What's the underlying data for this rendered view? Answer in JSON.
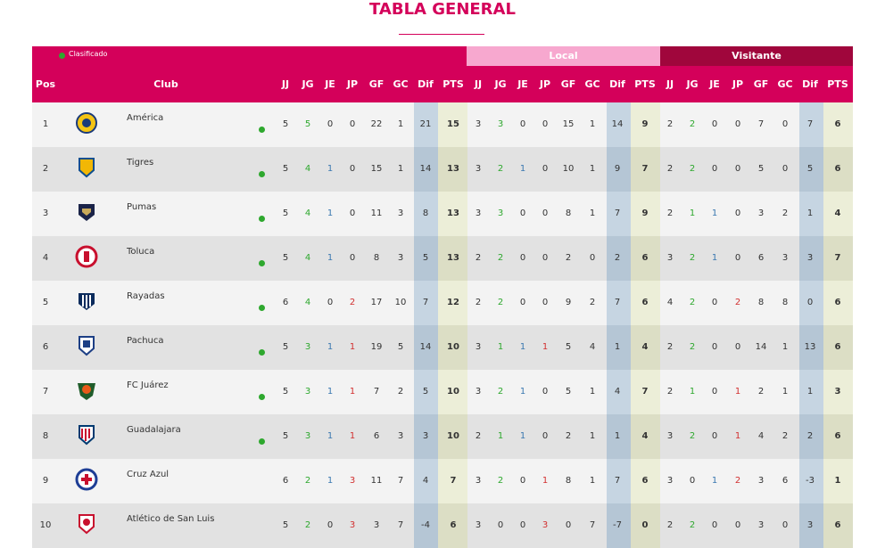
{
  "title": "TABLA GENERAL",
  "legend": {
    "label": "Clasificado",
    "color": "#2ea82e"
  },
  "segments": {
    "local": "Local",
    "visitante": "Visitante"
  },
  "headers": {
    "pos": "Pos",
    "club": "Club",
    "overall": [
      "JJ",
      "JG",
      "JE",
      "JP",
      "GF",
      "GC",
      "Dif",
      "PTS"
    ],
    "local": [
      "JJ",
      "JG",
      "JE",
      "JP",
      "GF",
      "GC",
      "Dif",
      "PTS"
    ],
    "visitante": [
      "JJ",
      "JG",
      "JE",
      "JP",
      "GF",
      "GC",
      "Dif",
      "PTS"
    ]
  },
  "colors": {
    "brand": "#d4005a",
    "local_header": "#f7a8cf",
    "visitante_header": "#a0063c",
    "dif_column": "#c0d0de",
    "pts_column": "#e8ebd2",
    "win": "#2ea82e",
    "draw": "#3a78b0",
    "loss": "#d23030"
  },
  "rows": [
    {
      "pos": "1",
      "club": "América",
      "logo": "america-logo",
      "classified": true,
      "overall": [
        "5",
        "5",
        "0",
        "0",
        "22",
        "1",
        "21",
        "15"
      ],
      "local": [
        "3",
        "3",
        "0",
        "0",
        "15",
        "1",
        "14",
        "9"
      ],
      "visitante": [
        "2",
        "2",
        "0",
        "0",
        "7",
        "0",
        "7",
        "6"
      ]
    },
    {
      "pos": "2",
      "club": "Tigres",
      "logo": "tigres-logo",
      "classified": true,
      "overall": [
        "5",
        "4",
        "1",
        "0",
        "15",
        "1",
        "14",
        "13"
      ],
      "local": [
        "3",
        "2",
        "1",
        "0",
        "10",
        "1",
        "9",
        "7"
      ],
      "visitante": [
        "2",
        "2",
        "0",
        "0",
        "5",
        "0",
        "5",
        "6"
      ]
    },
    {
      "pos": "3",
      "club": "Pumas",
      "logo": "pumas-logo",
      "classified": true,
      "overall": [
        "5",
        "4",
        "1",
        "0",
        "11",
        "3",
        "8",
        "13"
      ],
      "local": [
        "3",
        "3",
        "0",
        "0",
        "8",
        "1",
        "7",
        "9"
      ],
      "visitante": [
        "2",
        "1",
        "1",
        "0",
        "3",
        "2",
        "1",
        "4"
      ]
    },
    {
      "pos": "4",
      "club": "Toluca",
      "logo": "toluca-logo",
      "classified": true,
      "overall": [
        "5",
        "4",
        "1",
        "0",
        "8",
        "3",
        "5",
        "13"
      ],
      "local": [
        "2",
        "2",
        "0",
        "0",
        "2",
        "0",
        "2",
        "6"
      ],
      "visitante": [
        "3",
        "2",
        "1",
        "0",
        "6",
        "3",
        "3",
        "7"
      ]
    },
    {
      "pos": "5",
      "club": "Rayadas",
      "logo": "rayadas-logo",
      "classified": true,
      "overall": [
        "6",
        "4",
        "0",
        "2",
        "17",
        "10",
        "7",
        "12"
      ],
      "local": [
        "2",
        "2",
        "0",
        "0",
        "9",
        "2",
        "7",
        "6"
      ],
      "visitante": [
        "4",
        "2",
        "0",
        "2",
        "8",
        "8",
        "0",
        "6"
      ]
    },
    {
      "pos": "6",
      "club": "Pachuca",
      "logo": "pachuca-logo",
      "classified": true,
      "overall": [
        "5",
        "3",
        "1",
        "1",
        "19",
        "5",
        "14",
        "10"
      ],
      "local": [
        "3",
        "1",
        "1",
        "1",
        "5",
        "4",
        "1",
        "4"
      ],
      "visitante": [
        "2",
        "2",
        "0",
        "0",
        "14",
        "1",
        "13",
        "6"
      ]
    },
    {
      "pos": "7",
      "club": "FC Juárez",
      "logo": "juarez-logo",
      "classified": true,
      "overall": [
        "5",
        "3",
        "1",
        "1",
        "7",
        "2",
        "5",
        "10"
      ],
      "local": [
        "3",
        "2",
        "1",
        "0",
        "5",
        "1",
        "4",
        "7"
      ],
      "visitante": [
        "2",
        "1",
        "0",
        "1",
        "2",
        "1",
        "1",
        "3"
      ]
    },
    {
      "pos": "8",
      "club": "Guadalajara",
      "logo": "guadalajara-logo",
      "classified": true,
      "overall": [
        "5",
        "3",
        "1",
        "1",
        "6",
        "3",
        "3",
        "10"
      ],
      "local": [
        "2",
        "1",
        "1",
        "0",
        "2",
        "1",
        "1",
        "4"
      ],
      "visitante": [
        "3",
        "2",
        "0",
        "1",
        "4",
        "2",
        "2",
        "6"
      ]
    },
    {
      "pos": "9",
      "club": "Cruz Azul",
      "logo": "cruz-azul-logo",
      "classified": false,
      "overall": [
        "6",
        "2",
        "1",
        "3",
        "11",
        "7",
        "4",
        "7"
      ],
      "local": [
        "3",
        "2",
        "0",
        "1",
        "8",
        "1",
        "7",
        "6"
      ],
      "visitante": [
        "3",
        "0",
        "1",
        "2",
        "3",
        "6",
        "-3",
        "1"
      ]
    },
    {
      "pos": "10",
      "club": "Atlético de San Luis",
      "logo": "san-luis-logo",
      "classified": false,
      "overall": [
        "5",
        "2",
        "0",
        "3",
        "3",
        "7",
        "-4",
        "6"
      ],
      "local": [
        "3",
        "0",
        "0",
        "3",
        "0",
        "7",
        "-7",
        "0"
      ],
      "visitante": [
        "2",
        "2",
        "0",
        "0",
        "3",
        "0",
        "3",
        "6"
      ]
    }
  ]
}
